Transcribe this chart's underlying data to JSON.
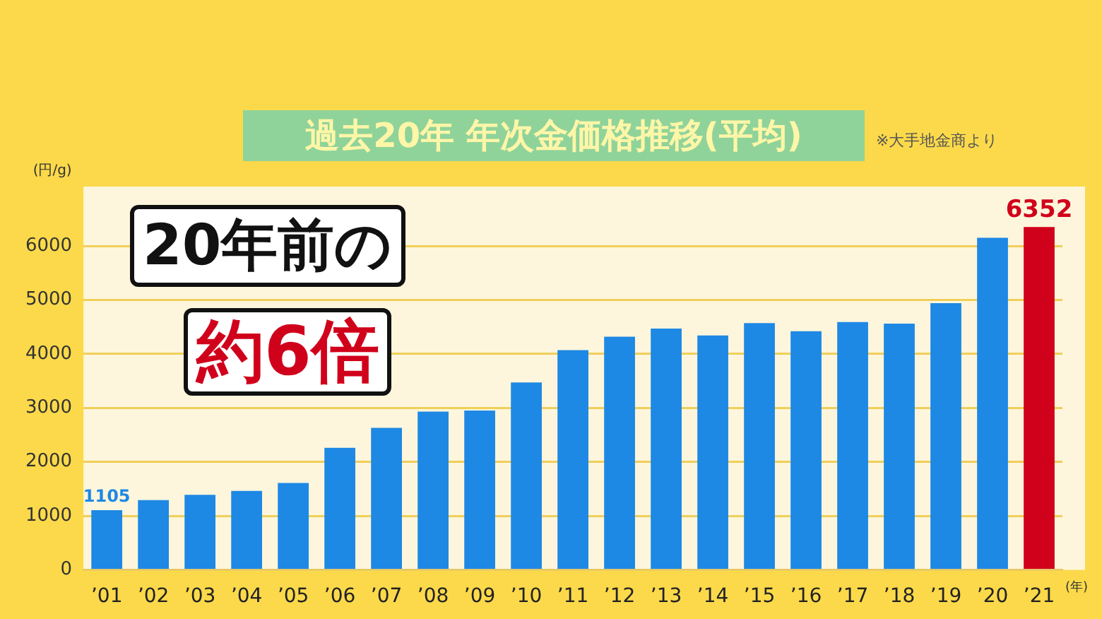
{
  "chart_data": {
    "type": "bar",
    "title": "過去20年 年次金価格推移(平均)",
    "ylabel": "(円/g)",
    "xlabel": "(年)",
    "annotations": [
      "※大手地金商より",
      "20年前の",
      "約6倍"
    ],
    "categories": [
      "’01",
      "’02",
      "’03",
      "’04",
      "’05",
      "’06",
      "’07",
      "’08",
      "’09",
      "’10",
      "’11",
      "’12",
      "’13",
      "’14",
      "’15",
      "’16",
      "’17",
      "’18",
      "’19",
      "’20",
      "’21"
    ],
    "values": [
      1105,
      1290,
      1390,
      1460,
      1610,
      2260,
      2630,
      2930,
      2950,
      3470,
      4070,
      4320,
      4470,
      4340,
      4570,
      4420,
      4590,
      4560,
      4940,
      6150,
      6352
    ],
    "colors": [
      "#1e88e5",
      "#1e88e5",
      "#1e88e5",
      "#1e88e5",
      "#1e88e5",
      "#1e88e5",
      "#1e88e5",
      "#1e88e5",
      "#1e88e5",
      "#1e88e5",
      "#1e88e5",
      "#1e88e5",
      "#1e88e5",
      "#1e88e5",
      "#1e88e5",
      "#1e88e5",
      "#1e88e5",
      "#1e88e5",
      "#1e88e5",
      "#1e88e5",
      "#d0021b"
    ],
    "value_labels": [
      "1105",
      null,
      null,
      null,
      null,
      null,
      null,
      null,
      null,
      null,
      null,
      null,
      null,
      null,
      null,
      null,
      null,
      null,
      null,
      null,
      "6352"
    ],
    "ylim": [
      0,
      7100
    ],
    "yticks": [
      0,
      1000,
      2000,
      3000,
      4000,
      5000,
      6000
    ],
    "grid": "y",
    "legend": false
  }
}
